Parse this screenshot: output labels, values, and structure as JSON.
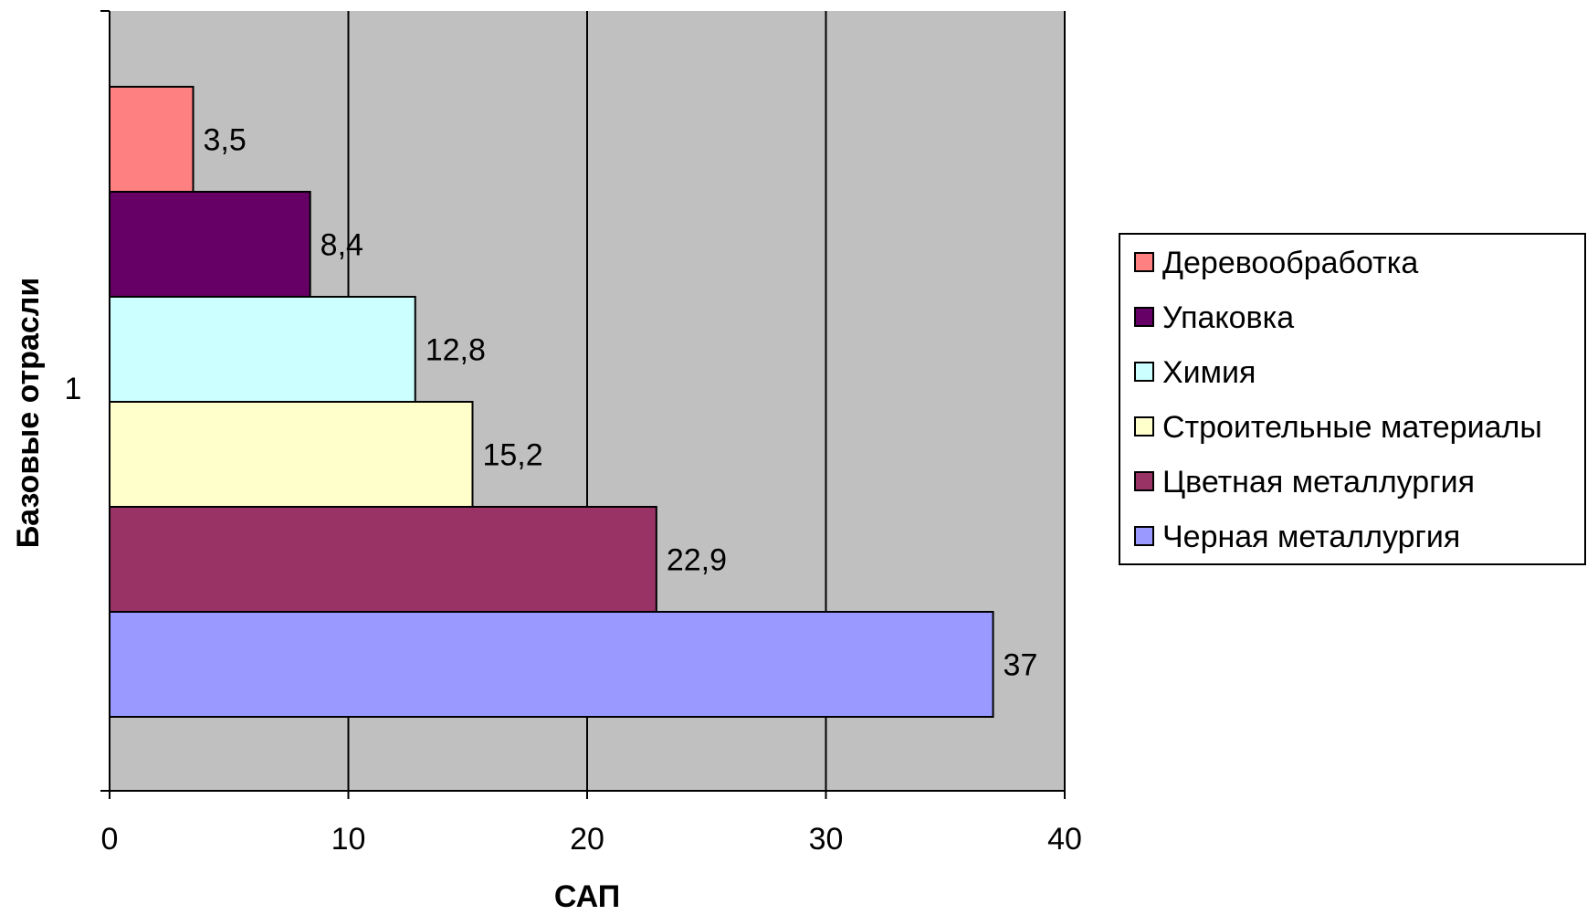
{
  "chart_data": {
    "type": "bar",
    "orientation": "horizontal",
    "title": "",
    "xlabel": "САП",
    "ylabel": "Базовые отрасли",
    "xlim": [
      0,
      40
    ],
    "x_ticks": [
      "0",
      "10",
      "20",
      "30",
      "40"
    ],
    "categories": [
      "1"
    ],
    "grid": "vertical",
    "plot_background": "#c0c0c0",
    "legend_position": "right",
    "series": [
      {
        "name": "Деревообработка",
        "values": [
          3.5
        ],
        "label": "3,5",
        "color": "#ff8080"
      },
      {
        "name": "Упаковка",
        "values": [
          8.4
        ],
        "label": "8,4",
        "color": "#660066"
      },
      {
        "name": "Химия",
        "values": [
          12.8
        ],
        "label": "12,8",
        "color": "#ccffff"
      },
      {
        "name": "Строительные материалы",
        "values": [
          15.2
        ],
        "label": "15,2",
        "color": "#ffffcc"
      },
      {
        "name": "Цветная металлургия",
        "values": [
          22.9
        ],
        "label": "22,9",
        "color": "#993366"
      },
      {
        "name": "Черная металлургия",
        "values": [
          37
        ],
        "label": "37",
        "color": "#9999ff"
      }
    ]
  }
}
